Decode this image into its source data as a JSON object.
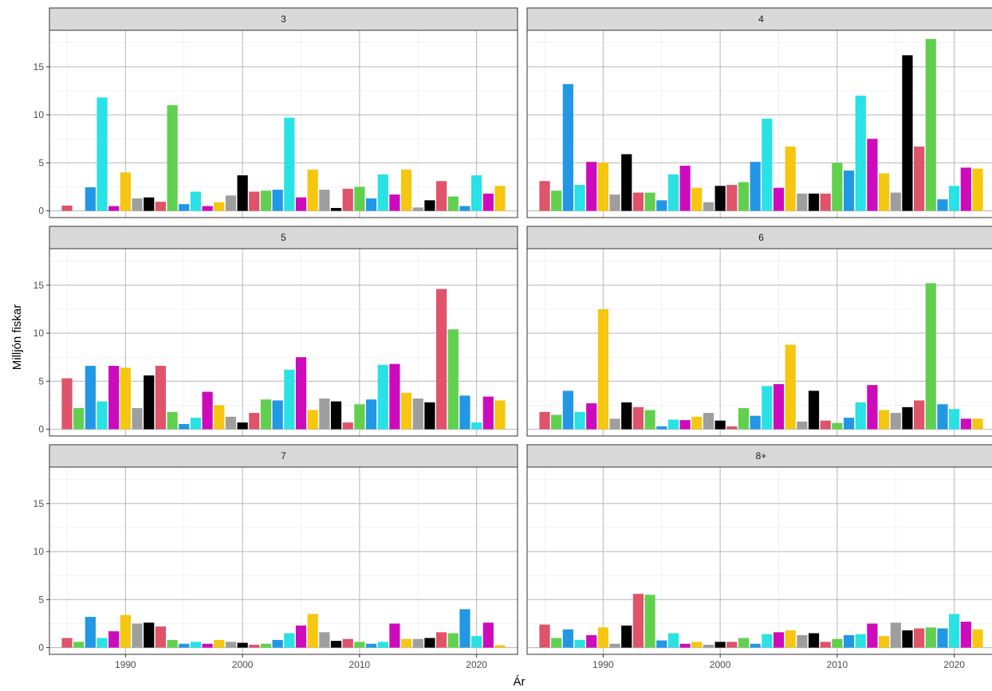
{
  "chart_data": {
    "type": "bar",
    "xlabel": "Ár",
    "ylabel": "Milljón fiskar",
    "x_ticks": [
      1990,
      2000,
      2010,
      2020
    ],
    "y_ticks": [
      0,
      5,
      10,
      15
    ],
    "xlim": [
      1983.5,
      2023.5
    ],
    "ylim": [
      -0.7,
      18.8
    ],
    "grid": true,
    "colors": [
      "#000000",
      "#DF536B",
      "#61D04F",
      "#2297E6",
      "#28E2E5",
      "#CD0BBC",
      "#F5C710",
      "#9E9E9E"
    ],
    "x": [
      1984,
      1985,
      1986,
      1987,
      1988,
      1989,
      1990,
      1991,
      1992,
      1993,
      1994,
      1995,
      1996,
      1997,
      1998,
      1999,
      2000,
      2001,
      2002,
      2003,
      2004,
      2005,
      2006,
      2007,
      2008,
      2009,
      2010,
      2011,
      2012,
      2013,
      2014,
      2015,
      2016,
      2017,
      2018,
      2019,
      2020,
      2021,
      2022
    ],
    "panels": [
      {
        "label": "3",
        "values": [
          0,
          0.55,
          0,
          2.45,
          11.8,
          0.5,
          4.0,
          1.3,
          1.4,
          0.95,
          11.0,
          0.7,
          2.0,
          0.5,
          0.9,
          1.6,
          3.7,
          2.0,
          2.1,
          2.2,
          9.7,
          1.4,
          4.3,
          2.2,
          0.3,
          2.3,
          2.5,
          1.3,
          3.8,
          1.7,
          4.3,
          0.35,
          1.1,
          3.1,
          1.5,
          0.5,
          3.7,
          1.8,
          2.6
        ]
      },
      {
        "label": "4",
        "values": [
          0,
          3.1,
          2.1,
          13.2,
          2.7,
          5.1,
          5.0,
          1.7,
          5.9,
          1.9,
          1.9,
          1.1,
          3.8,
          4.7,
          2.4,
          0.9,
          2.6,
          2.7,
          3.0,
          5.1,
          9.6,
          2.4,
          6.7,
          1.8,
          1.8,
          1.8,
          5.0,
          4.2,
          12.0,
          7.5,
          3.9,
          1.9,
          16.2,
          6.7,
          17.9,
          1.2,
          2.6,
          4.5,
          4.4
        ]
      },
      {
        "label": "5",
        "values": [
          0,
          5.3,
          2.2,
          6.6,
          2.9,
          6.6,
          6.4,
          2.2,
          5.6,
          6.6,
          1.8,
          0.55,
          1.2,
          3.9,
          2.5,
          1.3,
          0.7,
          1.7,
          3.1,
          3.0,
          6.2,
          7.5,
          2.0,
          3.2,
          2.9,
          0.7,
          2.6,
          3.1,
          6.7,
          6.8,
          3.8,
          3.2,
          2.8,
          14.6,
          10.4,
          3.5,
          0.7,
          3.4,
          3.0
        ]
      },
      {
        "label": "6",
        "values": [
          0,
          1.8,
          1.5,
          4.0,
          1.8,
          2.7,
          12.5,
          1.1,
          2.8,
          2.3,
          2.0,
          0.3,
          1.0,
          0.95,
          1.3,
          1.7,
          0.9,
          0.3,
          2.2,
          1.4,
          4.5,
          4.7,
          8.8,
          0.8,
          4.0,
          0.9,
          0.65,
          1.2,
          2.8,
          4.6,
          2.0,
          1.7,
          2.3,
          3.0,
          15.2,
          2.6,
          2.1,
          1.1,
          1.1
        ]
      },
      {
        "label": "7",
        "values": [
          0,
          1.0,
          0.6,
          3.2,
          1.0,
          1.7,
          3.4,
          2.5,
          2.6,
          2.2,
          0.8,
          0.4,
          0.6,
          0.4,
          0.8,
          0.6,
          0.5,
          0.3,
          0.4,
          0.8,
          1.5,
          2.3,
          3.5,
          1.6,
          0.7,
          0.9,
          0.6,
          0.4,
          0.6,
          2.5,
          0.9,
          0.9,
          1.0,
          1.6,
          1.5,
          4.0,
          1.2,
          2.6,
          0.25
        ]
      },
      {
        "label": "8+",
        "values": [
          0,
          2.4,
          1.0,
          1.9,
          0.8,
          1.3,
          2.1,
          0.4,
          2.3,
          5.6,
          5.5,
          0.75,
          1.5,
          0.4,
          0.6,
          0.3,
          0.6,
          0.6,
          1.0,
          0.4,
          1.4,
          1.6,
          1.8,
          1.3,
          1.5,
          0.6,
          0.9,
          1.3,
          1.4,
          2.5,
          1.2,
          2.6,
          1.8,
          2.0,
          2.1,
          2.0,
          3.5,
          2.7,
          1.9
        ]
      }
    ]
  }
}
